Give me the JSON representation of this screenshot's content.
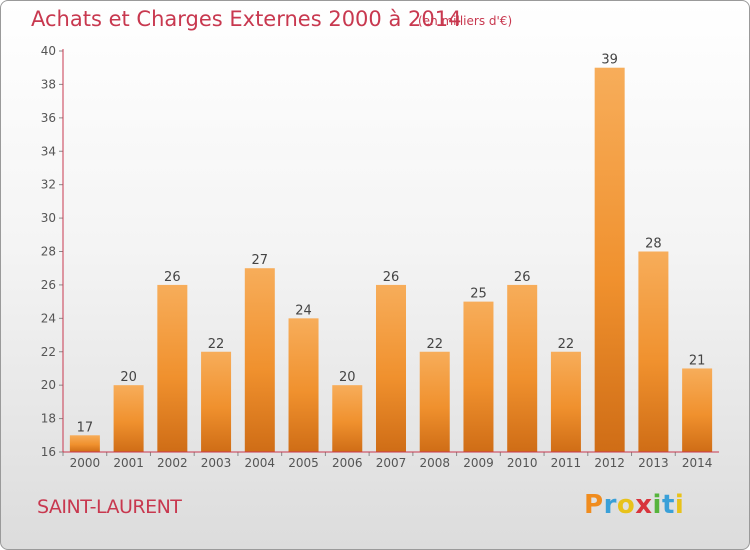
{
  "title": "Achats et Charges Externes 2000 à 2014",
  "unit": "(en milliers d'€)",
  "commune": "SAINT-LAURENT",
  "logo": {
    "text": "Proxiti",
    "letters": [
      "P",
      "r",
      "o",
      "x",
      "i",
      "t",
      "i"
    ],
    "colors": [
      "#f08c1e",
      "#3aa0d8",
      "#e8c21a",
      "#d8343c",
      "#56b43c",
      "#3aa0d8",
      "#e8c21a"
    ]
  },
  "chart_data": {
    "type": "bar",
    "categories": [
      "2000",
      "2001",
      "2002",
      "2003",
      "2004",
      "2005",
      "2006",
      "2007",
      "2008",
      "2009",
      "2010",
      "2011",
      "2012",
      "2013",
      "2014"
    ],
    "values": [
      17,
      20,
      26,
      22,
      27,
      24,
      20,
      26,
      22,
      25,
      26,
      22,
      39,
      28,
      21
    ],
    "title": "Achats et Charges Externes 2000 à 2014",
    "ylim": [
      16,
      40
    ],
    "yticks": [
      16,
      18,
      20,
      22,
      24,
      26,
      28,
      30,
      32,
      34,
      36,
      38,
      40
    ],
    "grid": false,
    "bar_color": "#f0912e",
    "bar_color_light": "#f7ad5a",
    "bar_color_dark": "#cf6d16",
    "axis_color": "#c8384f"
  }
}
